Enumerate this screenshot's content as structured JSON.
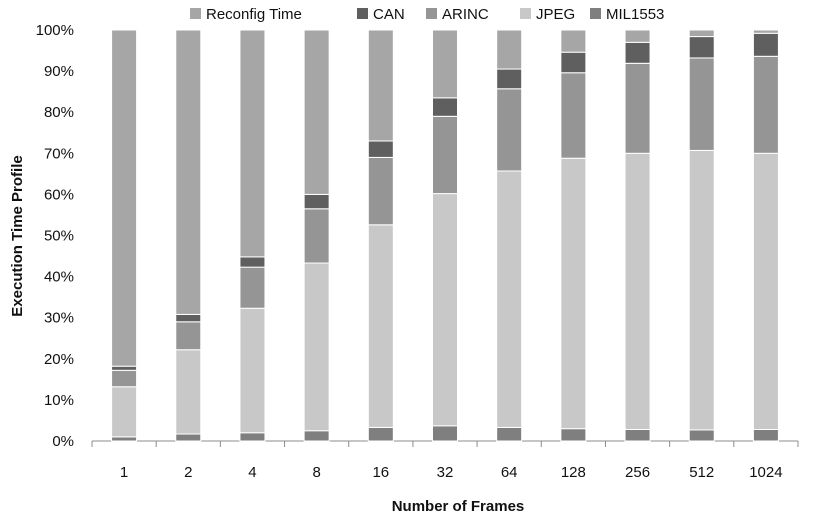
{
  "chart_data": {
    "type": "bar",
    "stacked": true,
    "percent": true,
    "title": "",
    "xlabel": "Number of Frames",
    "ylabel": "Execution Time Profile",
    "ylim": [
      0,
      100
    ],
    "yticks": [
      "0%",
      "10%",
      "20%",
      "30%",
      "40%",
      "50%",
      "60%",
      "70%",
      "80%",
      "90%",
      "100%"
    ],
    "categories": [
      "1",
      "2",
      "4",
      "8",
      "16",
      "32",
      "64",
      "128",
      "256",
      "512",
      "1024"
    ],
    "legend_position": "top",
    "grid": false,
    "series": [
      {
        "name": "MIL1553",
        "color": "#7f7f7f",
        "values": [
          1.0,
          1.7,
          2.0,
          2.5,
          3.3,
          3.7,
          3.3,
          3.0,
          2.8,
          2.7,
          2.8
        ]
      },
      {
        "name": "JPEG",
        "color": "#c8c8c8",
        "values": [
          12.2,
          20.5,
          30.3,
          40.8,
          49.3,
          56.5,
          62.4,
          65.8,
          67.2,
          68.0,
          67.2
        ]
      },
      {
        "name": "ARINC",
        "color": "#959595",
        "values": [
          4.0,
          6.8,
          10.0,
          13.2,
          16.4,
          18.8,
          20.0,
          20.8,
          21.9,
          22.5,
          23.6
        ]
      },
      {
        "name": "CAN",
        "color": "#5f5f5f",
        "values": [
          1.0,
          1.8,
          2.5,
          3.5,
          4.0,
          4.5,
          4.8,
          5.0,
          5.1,
          5.2,
          5.6
        ]
      },
      {
        "name": "Reconfig Time",
        "color": "#a6a6a6",
        "values": [
          81.8,
          69.2,
          55.2,
          40.0,
          27.0,
          16.5,
          9.5,
          5.4,
          3.0,
          1.6,
          0.8
        ]
      }
    ],
    "legend_order": [
      "Reconfig Time",
      "CAN",
      "ARINC",
      "JPEG",
      "MIL1553"
    ]
  }
}
